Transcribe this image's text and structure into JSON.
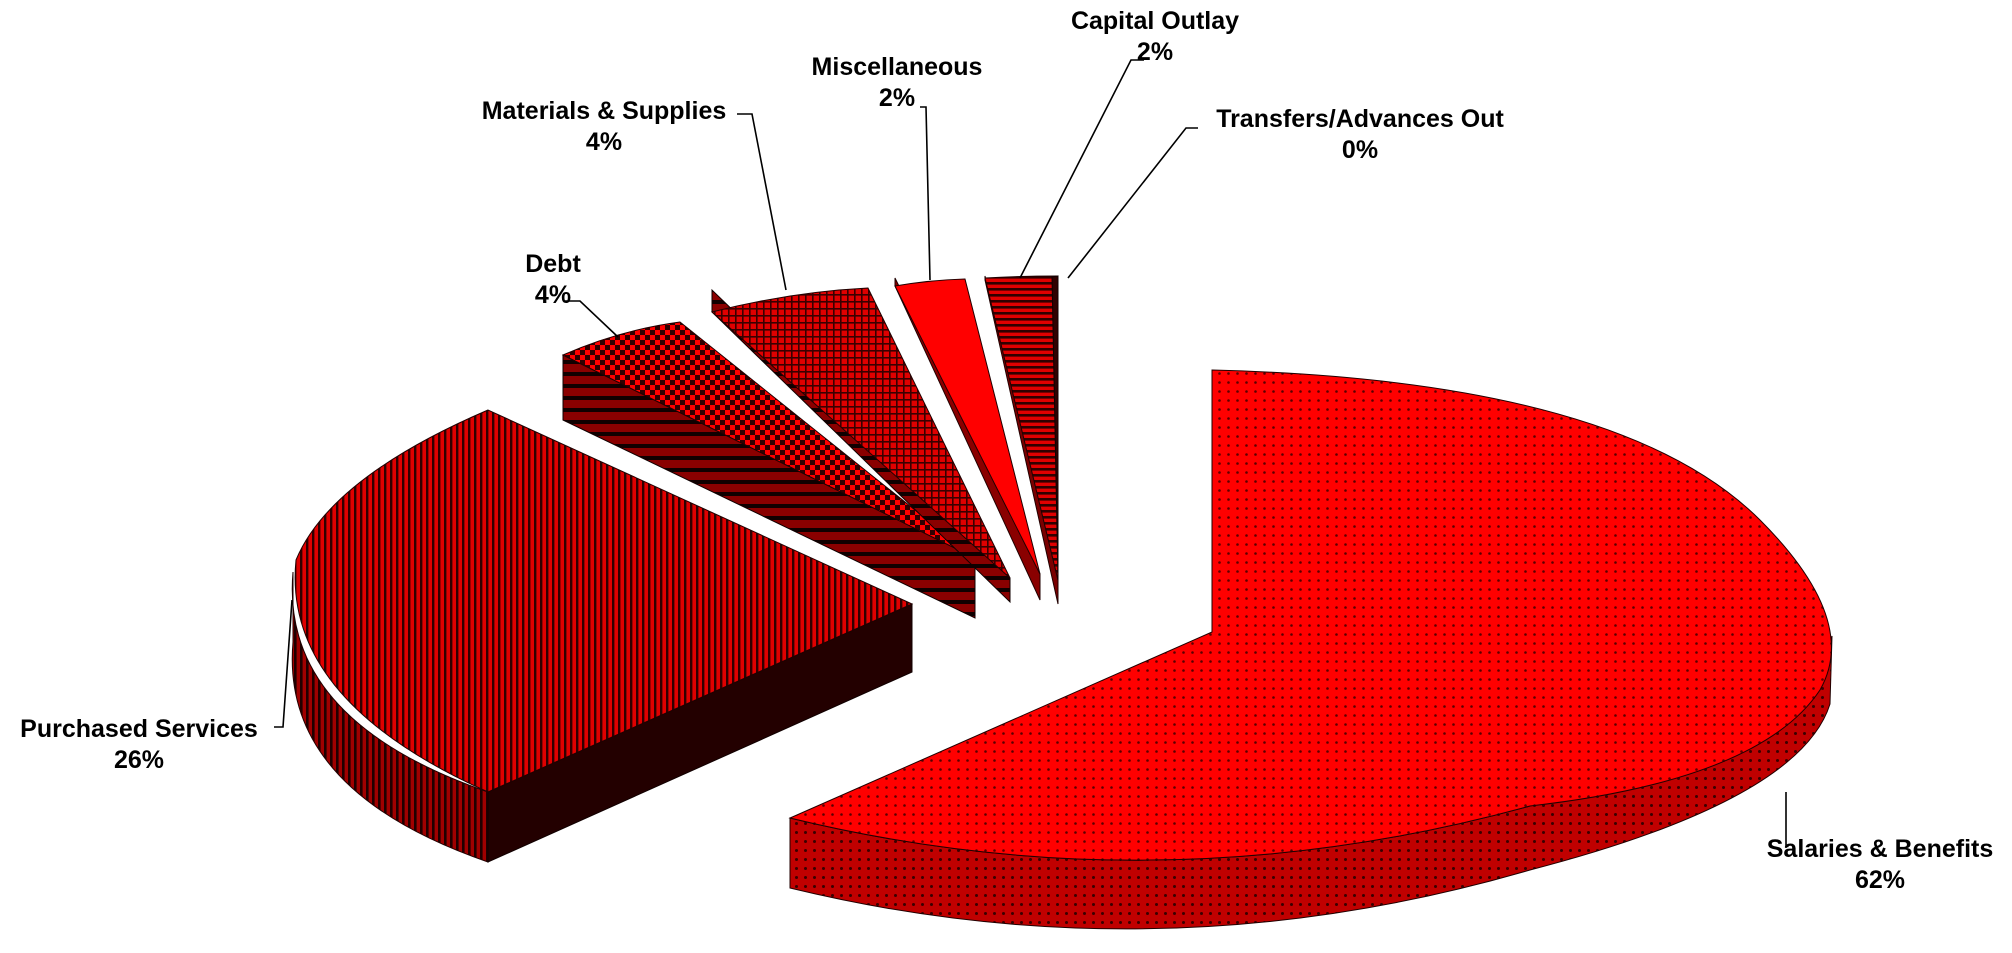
{
  "chart_data": {
    "type": "pie",
    "style": "3d-exploded",
    "title": "",
    "slices": [
      {
        "name": "Salaries & Benefits",
        "value": 62,
        "label": "62%",
        "color": "#ff0000",
        "pattern": "dots"
      },
      {
        "name": "Purchased Services",
        "value": 26,
        "label": "26%",
        "color": "#b30000",
        "pattern": "vertical-stripes"
      },
      {
        "name": "Debt",
        "value": 4,
        "label": "4%",
        "color": "#cc0000",
        "pattern": "checker"
      },
      {
        "name": "Materials & Supplies",
        "value": 4,
        "label": "4%",
        "color": "#cc0000",
        "pattern": "crosshatch"
      },
      {
        "name": "Miscellaneous",
        "value": 2,
        "label": "2%",
        "color": "#ff0000",
        "pattern": "solid"
      },
      {
        "name": "Capital Outlay",
        "value": 2,
        "label": "2%",
        "color": "#990000",
        "pattern": "horizontal-stripes"
      },
      {
        "name": "Transfers/Advances Out",
        "value": 0,
        "label": "0%",
        "color": "#990000",
        "pattern": "none"
      }
    ]
  }
}
